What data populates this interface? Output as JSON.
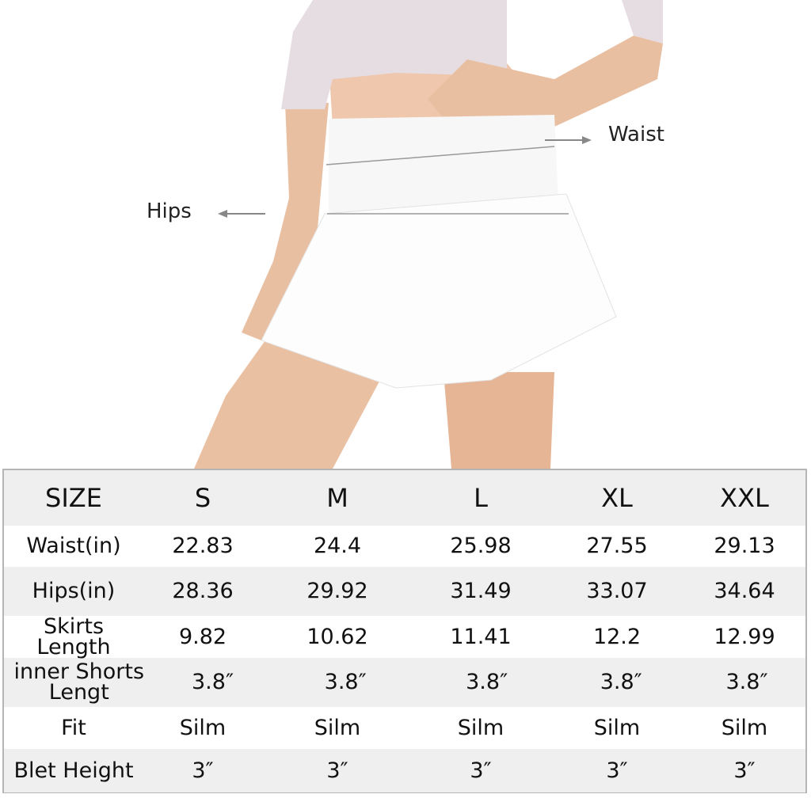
{
  "annotations": {
    "waist": "Waist",
    "hips": "Hips"
  },
  "colors": {
    "row_alt": "#efefef",
    "border": "#b5b5b5",
    "skin": "#e9bfa2",
    "skirt": "#ffffff",
    "top": "#e6dde3"
  },
  "table": {
    "header": [
      "SIZE",
      "S",
      "M",
      "L",
      "XL",
      "XXL"
    ],
    "rows": [
      [
        "Waist(in)",
        "22.83",
        "24.4",
        "25.98",
        "27.55",
        "29.13"
      ],
      [
        "Hips(in)",
        "28.36",
        "29.92",
        "31.49",
        "33.07",
        "34.64"
      ],
      [
        "Skirts Length",
        "9.82",
        "10.62",
        "11.41",
        "12.2",
        "12.99"
      ],
      [
        "inner Shorts Lengt",
        "3.8″",
        "3.8″",
        "3.8″",
        "3.8″",
        "3.8″"
      ],
      [
        "Fit",
        "Silm",
        "Silm",
        "Silm",
        "Silm",
        "Silm"
      ],
      [
        "Blet Height",
        "3″",
        "3″",
        "3″",
        "3″",
        "3″"
      ]
    ]
  }
}
